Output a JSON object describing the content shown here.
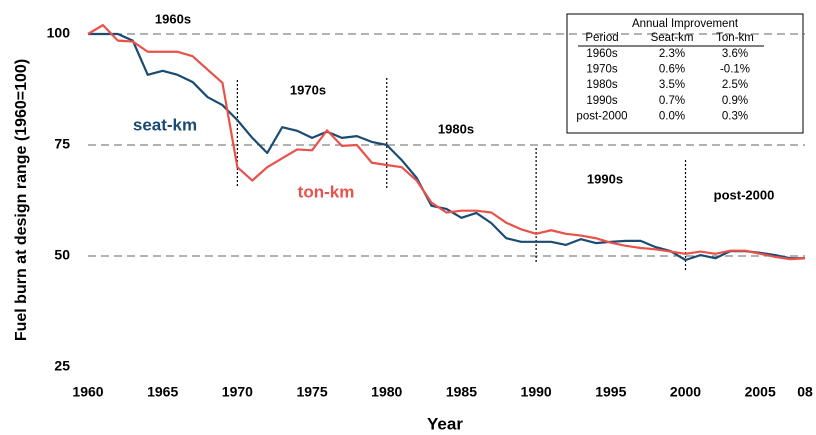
{
  "chart_data": {
    "type": "line",
    "xlabel": "Year",
    "ylabel": "Fuel burn at design range (1960=100)",
    "x": [
      1960,
      1961,
      1962,
      1963,
      1964,
      1965,
      1966,
      1967,
      1968,
      1969,
      1970,
      1971,
      1972,
      1973,
      1974,
      1975,
      1976,
      1977,
      1978,
      1979,
      1980,
      1981,
      1982,
      1983,
      1984,
      1985,
      1986,
      1987,
      1988,
      1989,
      1990,
      1991,
      1992,
      1993,
      1994,
      1995,
      1996,
      1997,
      1998,
      1999,
      2000,
      2001,
      2002,
      2003,
      2004,
      2005,
      2006,
      2007,
      2008
    ],
    "series": [
      {
        "name": "seat-km",
        "color": "#1b4b73",
        "values": [
          100,
          100,
          100,
          98.5,
          90.8,
          91.7,
          90.8,
          89.2,
          85.8,
          84,
          80.6,
          76.6,
          73.2,
          79,
          78.2,
          76.6,
          78,
          76.6,
          77,
          75.7,
          75,
          71.6,
          67.6,
          61.3,
          60.6,
          58.6,
          59.7,
          57.4,
          54,
          53.2,
          53.2,
          53.2,
          52.5,
          53.8,
          52.9,
          53.2,
          53.4,
          53.4,
          52,
          51.1,
          49.1,
          50.2,
          49.5,
          51.1,
          51.1,
          50.7,
          50.2,
          49.5,
          49.5
        ]
      },
      {
        "name": "ton-km",
        "color": "#e8524a",
        "values": [
          100,
          102,
          98.5,
          98.3,
          96,
          96,
          96,
          95,
          92,
          89,
          70,
          67,
          70,
          72,
          74,
          73.8,
          78.3,
          74.8,
          75,
          71,
          70.5,
          70,
          67,
          62,
          59.8,
          60.2,
          60.2,
          59.8,
          57.5,
          56,
          55,
          55.8,
          55,
          54.6,
          54,
          53,
          52.3,
          51.8,
          51.5,
          51,
          50.5,
          51,
          50.5,
          51.2,
          51.2,
          50.5,
          49.8,
          49.3,
          49.5
        ]
      }
    ],
    "xlim": [
      1960,
      2008
    ],
    "xticks": [
      1960,
      1965,
      1970,
      1975,
      1980,
      1985,
      1990,
      1995,
      2000,
      2005,
      {
        "value": 2008,
        "label": "08"
      }
    ],
    "ylim": [
      25,
      100
    ],
    "yticks": [
      25,
      50,
      75,
      100
    ],
    "grid": true,
    "period_breaks": [
      1970,
      1980,
      1990,
      2000
    ],
    "period_labels": [
      "1960s",
      "1970s",
      "1980s",
      "1990s",
      "post-2000"
    ],
    "table": {
      "title": "Annual Improvement",
      "header": [
        "Period",
        "Seat-km",
        "Ton-km"
      ],
      "rows": [
        [
          "1960s",
          "2.3%",
          "3.6%"
        ],
        [
          "1970s",
          "0.6%",
          "-0.1%"
        ],
        [
          "1980s",
          "3.5%",
          "2.5%"
        ],
        [
          "1990s",
          "0.7%",
          "0.9%"
        ],
        [
          "post-2000",
          "0.0%",
          "0.3%"
        ]
      ]
    }
  }
}
